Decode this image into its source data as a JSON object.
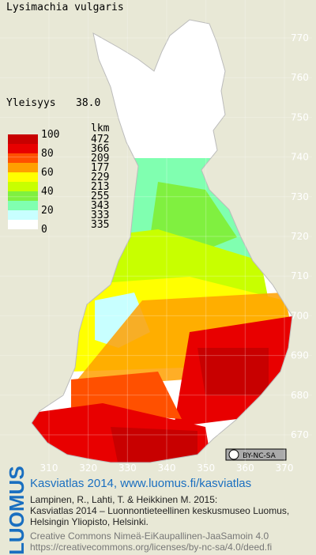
{
  "title": "Lysimachia vulgaris",
  "frequency": {
    "label": "Yleisyys",
    "value": "38.0"
  },
  "legend": {
    "header": "lkm",
    "scale_labels": [
      100,
      80,
      60,
      40,
      20,
      0
    ],
    "classes": [
      {
        "color": "#c80000",
        "count": 472
      },
      {
        "color": "#e80000",
        "count": 366
      },
      {
        "color": "#ff5000",
        "count": 209
      },
      {
        "color": "#ffa000",
        "count": 177
      },
      {
        "color": "#ffff00",
        "count": 229
      },
      {
        "color": "#c8ff00",
        "count": 213
      },
      {
        "color": "#80f040",
        "count": 255
      },
      {
        "color": "#80ffb0",
        "count": 343
      },
      {
        "color": "#c8ffff",
        "count": 333
      },
      {
        "color": "#ffffff",
        "count": 335
      }
    ]
  },
  "grid": {
    "north": [
      770,
      760,
      750,
      740,
      730,
      720,
      710,
      700,
      690,
      680,
      670
    ],
    "east": [
      310,
      320,
      330,
      340,
      350,
      360,
      370
    ]
  },
  "license_badge": "BY-NC-SA",
  "footer": {
    "logo": "LUOMUS",
    "heading": "Kasviatlas 2014, www.luomus.fi/kasviatlas",
    "citation": [
      "Lampinen, R., Lahti, T. & Heikkinen M. 2015:",
      "Kasviatlas 2014 – Luonnontieteellinen keskusmuseo Luomus,",
      "Helsingin Yliopisto, Helsinki."
    ],
    "license": [
      "Creative Commons Nimeä-EiKaupallinen-JaaSamoin 4.0",
      "https://creativecommons.org/licenses/by-nc-sa/4.0/deed.fi"
    ]
  }
}
